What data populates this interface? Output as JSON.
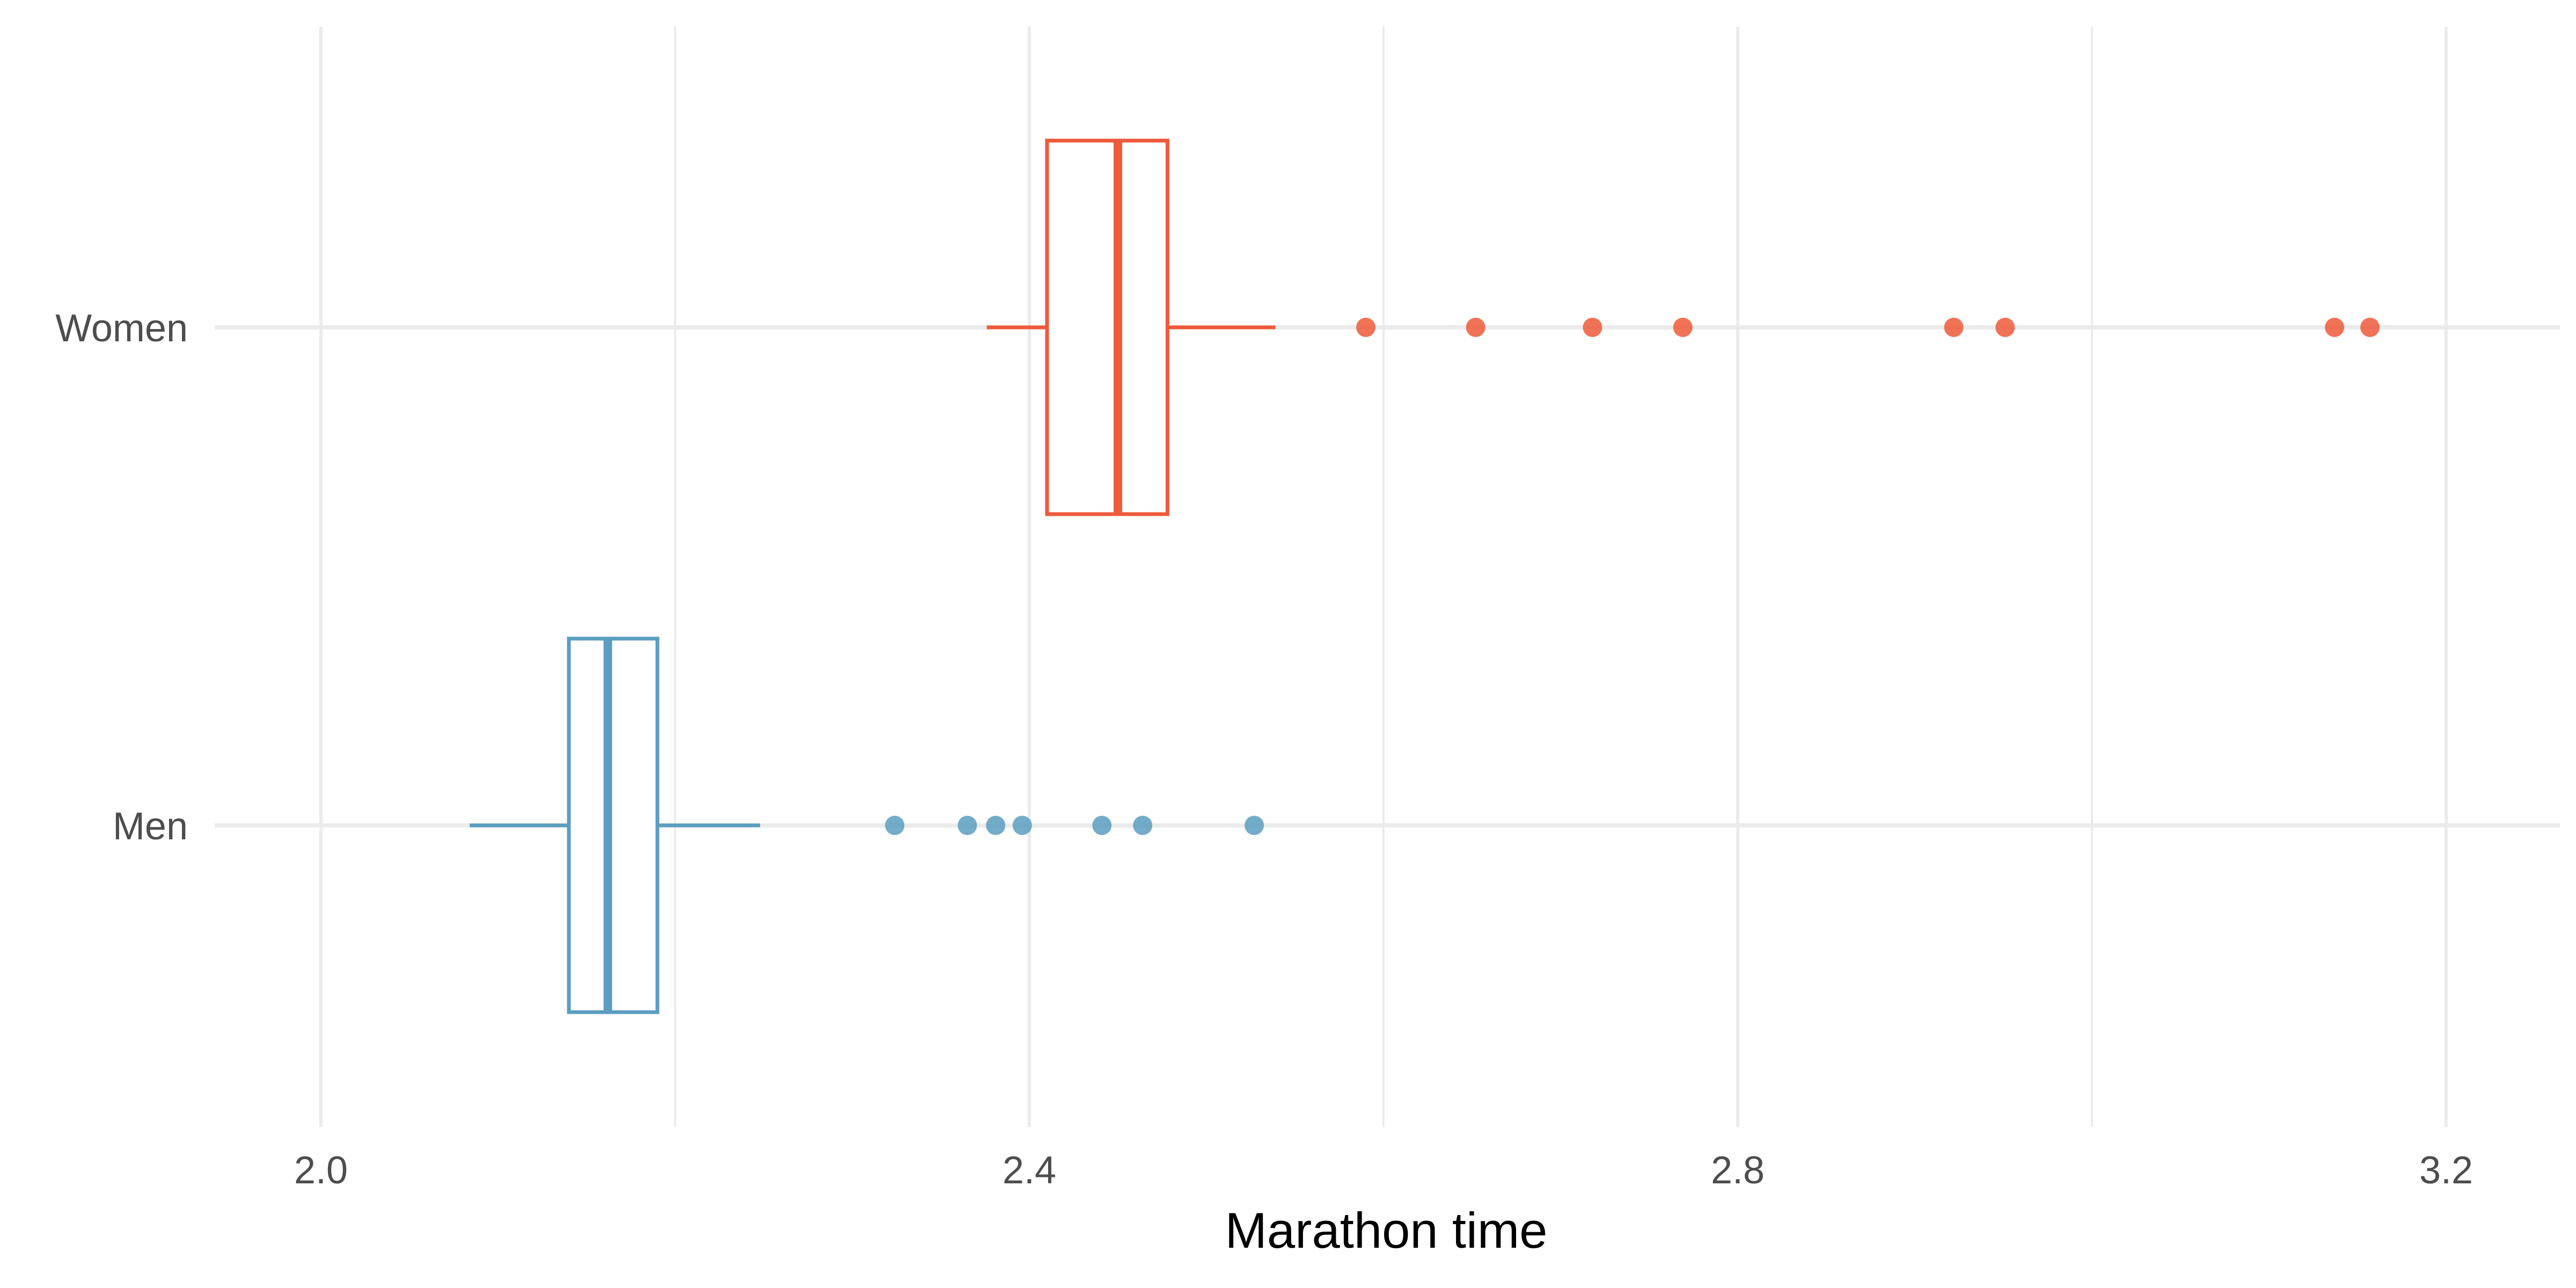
{
  "chart_data": {
    "type": "boxplot",
    "orientation": "horizontal",
    "title": "",
    "xlabel": "Marathon time",
    "ylabel": "",
    "xlim": [
      1.94,
      3.26
    ],
    "xticks": [
      2.0,
      2.4,
      2.8,
      3.2
    ],
    "xtick_labels": [
      "2.0",
      "2.4",
      "2.8",
      "3.2"
    ],
    "grid": true,
    "legend": "none",
    "series": [
      {
        "name": "Men",
        "color": "#5B9EC0",
        "whisker_low": 2.084,
        "q1": 2.14,
        "median": 2.162,
        "q3": 2.19,
        "whisker_high": 2.248,
        "outliers": [
          2.324,
          2.365,
          2.381,
          2.396,
          2.441,
          2.464,
          2.527
        ]
      },
      {
        "name": "Women",
        "color": "#EE5A3A",
        "whisker_low": 2.376,
        "q1": 2.41,
        "median": 2.45,
        "q3": 2.478,
        "whisker_high": 2.539,
        "outliers": [
          2.59,
          2.652,
          2.718,
          2.769,
          2.922,
          2.951,
          3.137,
          3.157
        ]
      }
    ]
  }
}
